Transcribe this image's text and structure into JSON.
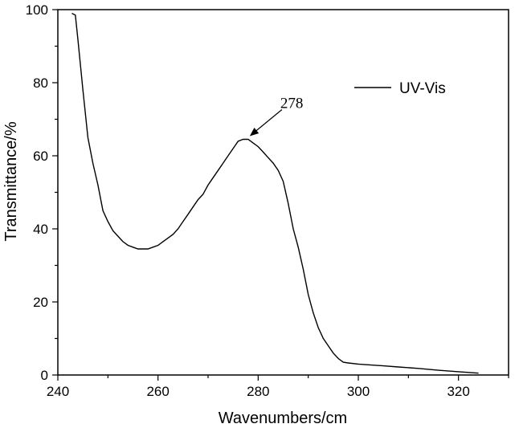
{
  "chart_data": {
    "type": "line",
    "xlabel": "Wavenumbers/cm",
    "ylabel": "Transmittance/%",
    "xlim": [
      240,
      330
    ],
    "ylim": [
      0,
      100
    ],
    "x_ticks": [
      240,
      260,
      280,
      300,
      320
    ],
    "y_ticks": [
      0,
      20,
      40,
      60,
      80,
      100
    ],
    "grid": false,
    "legend_position": "top-right",
    "series": [
      {
        "name": "UV-Vis",
        "color": "#000000",
        "points": [
          [
            242.8,
            99
          ],
          [
            243.5,
            98.5
          ],
          [
            244,
            92
          ],
          [
            245,
            78
          ],
          [
            246,
            65
          ],
          [
            247,
            58
          ],
          [
            248,
            52
          ],
          [
            249,
            45
          ],
          [
            250,
            42
          ],
          [
            251,
            39.5
          ],
          [
            252,
            38
          ],
          [
            253,
            36.5
          ],
          [
            254,
            35.5
          ],
          [
            255,
            35
          ],
          [
            256,
            34.5
          ],
          [
            258,
            34.5
          ],
          [
            259,
            35
          ],
          [
            260,
            35.5
          ],
          [
            261,
            36.5
          ],
          [
            262,
            37.5
          ],
          [
            263,
            38.5
          ],
          [
            264,
            40
          ],
          [
            265,
            42
          ],
          [
            266,
            44
          ],
          [
            267,
            46
          ],
          [
            268,
            48
          ],
          [
            269,
            49.5
          ],
          [
            270,
            52
          ],
          [
            271,
            54
          ],
          [
            272,
            56
          ],
          [
            273,
            58
          ],
          [
            274,
            60
          ],
          [
            275,
            62
          ],
          [
            276,
            64
          ],
          [
            277,
            64.5
          ],
          [
            278,
            64.5
          ],
          [
            279,
            63.5
          ],
          [
            280,
            62.5
          ],
          [
            281,
            61
          ],
          [
            282,
            59.5
          ],
          [
            283,
            58
          ],
          [
            284,
            56
          ],
          [
            285,
            53
          ],
          [
            286,
            47
          ],
          [
            287,
            40
          ],
          [
            288,
            35
          ],
          [
            289,
            29
          ],
          [
            290,
            22
          ],
          [
            291,
            17
          ],
          [
            292,
            13
          ],
          [
            293,
            10
          ],
          [
            294,
            8
          ],
          [
            295,
            6
          ],
          [
            296,
            4.5
          ],
          [
            297,
            3.5
          ],
          [
            298,
            3.3
          ],
          [
            300,
            3.0
          ],
          [
            302,
            2.8
          ],
          [
            305,
            2.5
          ],
          [
            308,
            2.2
          ],
          [
            312,
            1.8
          ],
          [
            316,
            1.3
          ],
          [
            320,
            0.9
          ],
          [
            324,
            0.5
          ]
        ]
      }
    ],
    "annotations": [
      {
        "text": "278",
        "x": 278,
        "y": 64.5
      }
    ]
  }
}
